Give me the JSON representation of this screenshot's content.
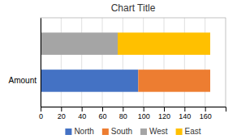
{
  "chart_data": {
    "type": "bar",
    "orientation": "horizontal",
    "stacked": true,
    "title": "Chart Title",
    "categories": [
      "Amount",
      null
    ],
    "series": [
      {
        "name": "North",
        "color": "#4472C4",
        "values": [
          95,
          0
        ]
      },
      {
        "name": "South",
        "color": "#ED7D31",
        "values": [
          70,
          0
        ]
      },
      {
        "name": "West",
        "color": "#A5A5A5",
        "values": [
          0,
          75
        ]
      },
      {
        "name": "East",
        "color": "#FFC000",
        "values": [
          0,
          90
        ]
      }
    ],
    "xlim": [
      0,
      180
    ],
    "xticks": [
      0,
      20,
      40,
      60,
      80,
      100,
      120,
      140,
      160
    ],
    "grid": true,
    "legend": "bottom"
  }
}
